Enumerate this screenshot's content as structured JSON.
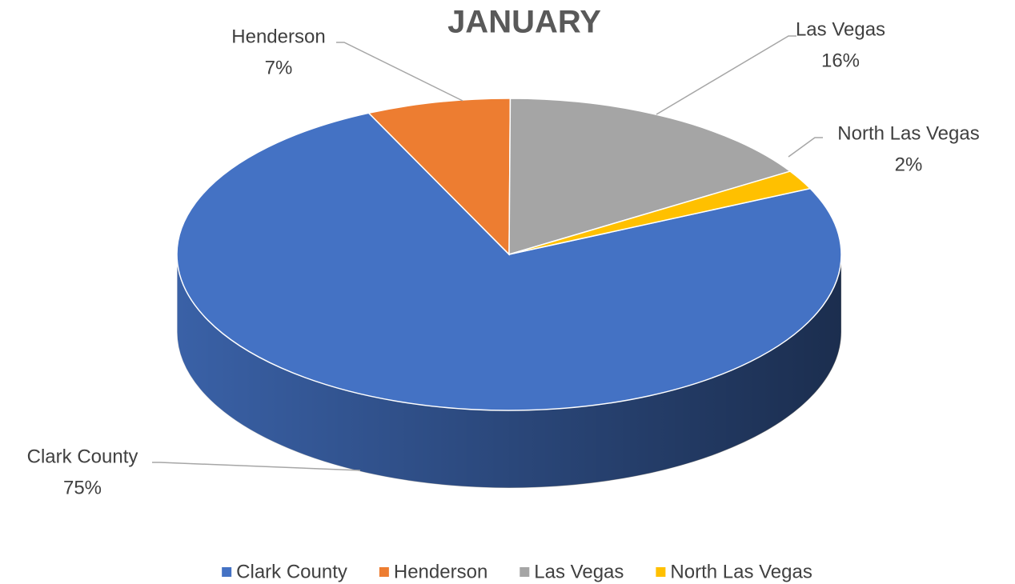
{
  "chart_data": {
    "type": "pie",
    "title": "JANUARY",
    "categories": [
      "Clark County",
      "Henderson",
      "Las Vegas",
      "North Las Vegas"
    ],
    "values": [
      75,
      7,
      16,
      2
    ],
    "value_labels": [
      "75%",
      "7%",
      "16%",
      "2%"
    ],
    "colors": [
      "#4472c4",
      "#ed7d31",
      "#a5a5a5",
      "#ffc000"
    ],
    "legend": "bottom"
  }
}
